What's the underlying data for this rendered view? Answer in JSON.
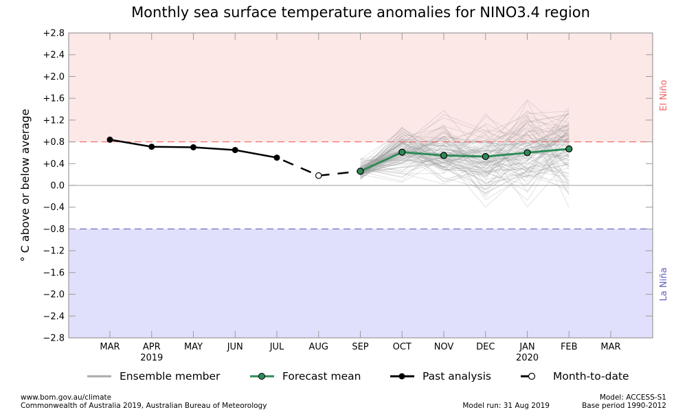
{
  "chart_data": {
    "type": "line",
    "title": "Monthly sea surface temperature anomalies for NINO3.4 region",
    "xlabel": "",
    "ylabel": "° C above or below average",
    "ylim": [
      -2.8,
      2.8
    ],
    "yticks": [
      2.8,
      2.4,
      2.0,
      1.6,
      1.2,
      0.8,
      0.4,
      0.0,
      -0.4,
      -0.8,
      -1.2,
      -1.6,
      -2.0,
      -2.4,
      -2.8
    ],
    "ytick_labels": [
      "+2.8",
      "+2.4",
      "+2.0",
      "+1.6",
      "+1.2",
      "+0.8",
      "+0.4",
      "0.0",
      "−0.4",
      "−0.8",
      "−1.2",
      "−1.6",
      "−2.0",
      "−2.4",
      "−2.8"
    ],
    "categories": [
      "MAR",
      "APR",
      "MAY",
      "JUN",
      "JUL",
      "AUG",
      "SEP",
      "OCT",
      "NOV",
      "DEC",
      "JAN",
      "FEB",
      "MAR"
    ],
    "year_labels": [
      {
        "index": 1,
        "label": "2019"
      },
      {
        "index": 10,
        "label": "2020"
      }
    ],
    "thresholds": [
      {
        "name": "El Niño",
        "value": 0.8,
        "color": "#f06060",
        "fill": "#fde8e8",
        "label_position": "right-top"
      },
      {
        "name": "La Niña",
        "value": -0.8,
        "color": "#6060c0",
        "fill": "#e0e0fc",
        "label_position": "right-bottom"
      }
    ],
    "series": [
      {
        "name": "Past analysis",
        "color": "#000000",
        "style": "solid-filled-markers",
        "x_index": [
          0,
          1,
          2,
          3,
          4
        ],
        "values": [
          0.84,
          0.71,
          0.7,
          0.65,
          0.51
        ]
      },
      {
        "name": "Month-to-date",
        "color": "#000000",
        "style": "dashed-open-marker",
        "x_index": [
          4,
          5,
          6
        ],
        "values": [
          0.51,
          0.18,
          0.26
        ],
        "marker_index": [
          5
        ]
      },
      {
        "name": "Forecast mean",
        "color": "#2e8b57",
        "style": "solid-green-markers",
        "x_index": [
          6,
          7,
          8,
          9,
          10,
          11
        ],
        "values": [
          0.26,
          0.61,
          0.55,
          0.53,
          0.6,
          0.67
        ]
      },
      {
        "name": "Ensemble member",
        "color": "#aaaaaa",
        "style": "thin-gray-lines",
        "x_index": [
          6,
          7,
          8,
          9,
          10,
          11
        ],
        "count": 99,
        "spread_min": [
          0.05,
          -0.05,
          -0.15,
          -0.45,
          -0.55,
          -0.58
        ],
        "spread_max": [
          0.58,
          1.25,
          1.47,
          1.52,
          1.84,
          1.9
        ]
      }
    ],
    "legend": {
      "placement": "bottom",
      "entries": [
        "Ensemble member",
        "Forecast mean",
        "Past analysis",
        "Month-to-date"
      ]
    },
    "grid": false
  },
  "footer": {
    "left_line1": "www.bom.gov.au/climate",
    "left_line2": "Commonwealth of Australia 2019, Australian Bureau of Meteorology",
    "model_run": "Model run: 31 Aug 2019",
    "model": "Model: ACCESS-S1",
    "base_period": "Base period 1990-2012"
  }
}
